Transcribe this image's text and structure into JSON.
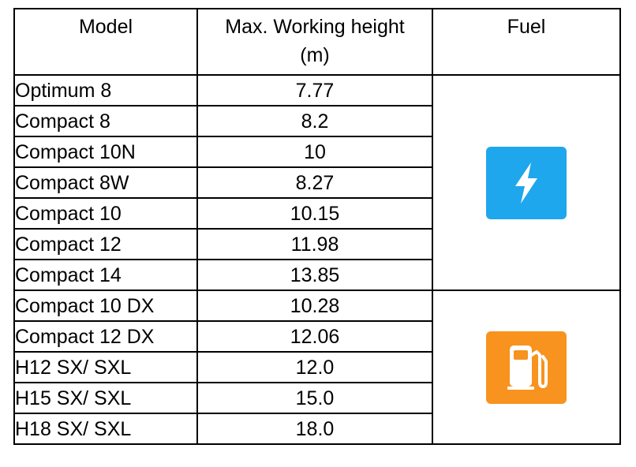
{
  "header": {
    "model": "Model",
    "height_line1": "Max. Working height",
    "height_line2": "(m)",
    "fuel": "Fuel"
  },
  "groups": [
    {
      "fuel_icon": "electric-lightning-icon",
      "fuel_color": "#1ea7ec",
      "rows": [
        {
          "model": "Optimum 8",
          "height": "7.77"
        },
        {
          "model": "Compact 8",
          "height": "8.2"
        },
        {
          "model": "Compact 10N",
          "height": "10"
        },
        {
          "model": "Compact 8W",
          "height": "8.27"
        },
        {
          "model": "Compact 10",
          "height": "10.15"
        },
        {
          "model": "Compact 12",
          "height": "11.98"
        },
        {
          "model": "Compact 14",
          "height": "13.85"
        }
      ]
    },
    {
      "fuel_icon": "fuel-pump-icon",
      "fuel_color": "#f7931e",
      "rows": [
        {
          "model": "Compact 10 DX",
          "height": "10.28"
        },
        {
          "model": "Compact 12 DX",
          "height": "12.06"
        },
        {
          "model": "H12 SX/ SXL",
          "height": "12.0"
        },
        {
          "model": "H15 SX/ SXL",
          "height": "15.0"
        },
        {
          "model": "H18 SX/ SXL",
          "height": "18.0"
        }
      ]
    }
  ]
}
